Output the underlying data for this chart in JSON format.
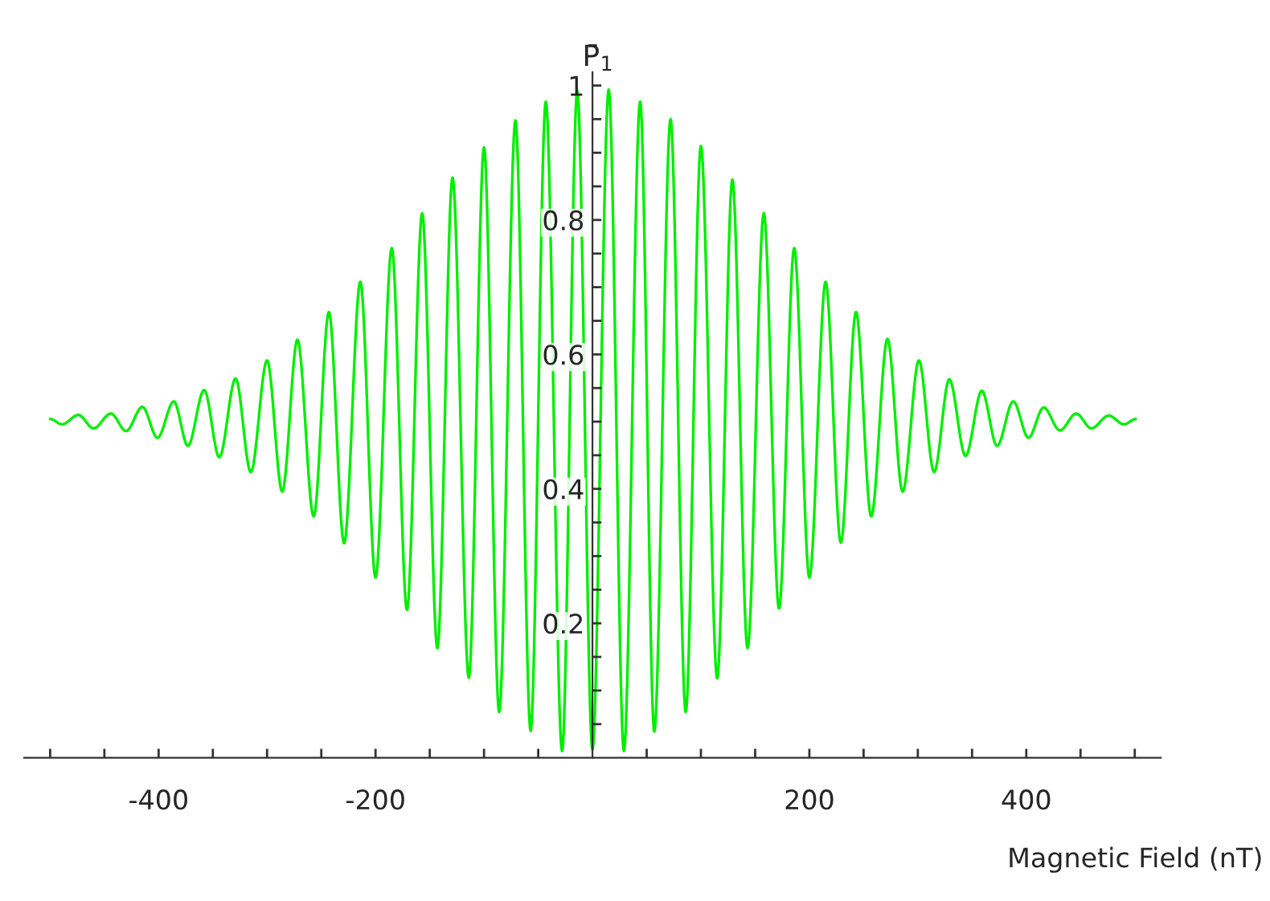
{
  "chart_data": {
    "type": "line",
    "xlabel": "Magnetic Field (nT)",
    "ylabel": "P̄$_{1}$",
    "xlim": [
      -524,
      524
    ],
    "ylim": [
      0,
      1.02
    ],
    "xticks": [
      {
        "value": -500,
        "label": null
      },
      {
        "value": -450,
        "label": null
      },
      {
        "value": -400,
        "label": "-400"
      },
      {
        "value": -350,
        "label": null
      },
      {
        "value": -300,
        "label": null
      },
      {
        "value": -250,
        "label": null
      },
      {
        "value": -200,
        "label": "-200"
      },
      {
        "value": -150,
        "label": null
      },
      {
        "value": -100,
        "label": null
      },
      {
        "value": -50,
        "label": null
      },
      {
        "value": 50,
        "label": null
      },
      {
        "value": 100,
        "label": null
      },
      {
        "value": 150,
        "label": null
      },
      {
        "value": 200,
        "label": "200"
      },
      {
        "value": 250,
        "label": null
      },
      {
        "value": 300,
        "label": null
      },
      {
        "value": 350,
        "label": null
      },
      {
        "value": 400,
        "label": "400"
      },
      {
        "value": 450,
        "label": null
      },
      {
        "value": 500,
        "label": null
      }
    ],
    "yticks": [
      {
        "value": 0.05,
        "label": null
      },
      {
        "value": 0.1,
        "label": null
      },
      {
        "value": 0.15,
        "label": null
      },
      {
        "value": 0.2,
        "label": "0.2"
      },
      {
        "value": 0.25,
        "label": null
      },
      {
        "value": 0.3,
        "label": null
      },
      {
        "value": 0.35,
        "label": null
      },
      {
        "value": 0.4,
        "label": "0.4"
      },
      {
        "value": 0.45,
        "label": null
      },
      {
        "value": 0.5,
        "label": null
      },
      {
        "value": 0.55,
        "label": null
      },
      {
        "value": 0.6,
        "label": "0.6"
      },
      {
        "value": 0.65,
        "label": null
      },
      {
        "value": 0.7,
        "label": null
      },
      {
        "value": 0.75,
        "label": null
      },
      {
        "value": 0.8,
        "label": "0.8"
      },
      {
        "value": 0.85,
        "label": null
      },
      {
        "value": 0.9,
        "label": null
      },
      {
        "value": 0.95,
        "label": null
      },
      {
        "value": 1,
        "label": "1"
      }
    ],
    "grid": false,
    "legend": false,
    "series": [
      {
        "color": "#00ee00",
        "x": [
          -500,
          -489,
          -474,
          -460,
          -444,
          -430,
          -415,
          -401,
          -386,
          -373,
          -358,
          -344,
          -329,
          -315,
          -300,
          -286,
          -272,
          -257,
          -243,
          -229,
          -214,
          -200,
          -185,
          -171,
          -157,
          -143,
          -129,
          -114,
          -100,
          -86,
          -71,
          -57,
          -43,
          -28,
          -14,
          0,
          15,
          29,
          44,
          57,
          72,
          86,
          100,
          115,
          129,
          143,
          158,
          172,
          186,
          200,
          215,
          229,
          243,
          257,
          272,
          286,
          301,
          315,
          329,
          344,
          359,
          373,
          388,
          402,
          416,
          431,
          446,
          460,
          476,
          490,
          501
        ],
        "values": [
          0.504,
          0.496,
          0.51,
          0.49,
          0.512,
          0.486,
          0.522,
          0.476,
          0.53,
          0.464,
          0.547,
          0.447,
          0.564,
          0.425,
          0.591,
          0.396,
          0.622,
          0.359,
          0.663,
          0.319,
          0.708,
          0.268,
          0.758,
          0.22,
          0.81,
          0.163,
          0.863,
          0.119,
          0.908,
          0.068,
          0.948,
          0.04,
          0.976,
          0.01,
          0.992,
          0.012,
          0.994,
          0.01,
          0.976,
          0.039,
          0.95,
          0.068,
          0.91,
          0.118,
          0.86,
          0.163,
          0.81,
          0.222,
          0.758,
          0.268,
          0.708,
          0.32,
          0.663,
          0.359,
          0.623,
          0.396,
          0.591,
          0.425,
          0.563,
          0.449,
          0.546,
          0.464,
          0.53,
          0.476,
          0.521,
          0.487,
          0.512,
          0.49,
          0.509,
          0.496,
          0.504
        ]
      }
    ]
  }
}
